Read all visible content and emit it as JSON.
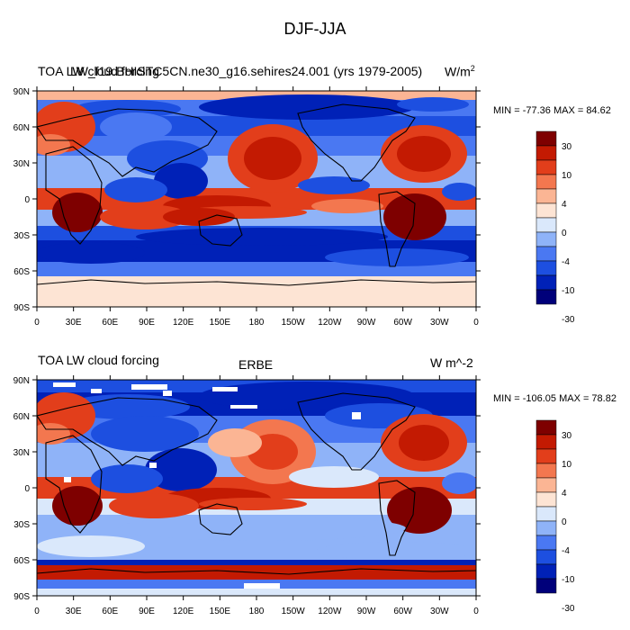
{
  "figure_title": "DJF-JJA",
  "colors": {
    "palette": [
      "#00007a",
      "#0021b7",
      "#1d4fe0",
      "#4a78f2",
      "#8fb3f8",
      "#dae8fb",
      "#fde4d4",
      "#fbb594",
      "#f3774f",
      "#e23e1b",
      "#c31a02",
      "#7e0000"
    ],
    "land_mask": "#ffffff",
    "coastline": "#000000"
  },
  "colorbar": {
    "labels": [
      "30",
      "10",
      "4",
      "0",
      "-4",
      "-10",
      "-30"
    ]
  },
  "axes": {
    "lat_labels": [
      "90N",
      "60N",
      "30N",
      "0",
      "30S",
      "60S",
      "90S"
    ],
    "lon_labels": [
      "0",
      "30E",
      "60E",
      "90E",
      "120E",
      "150E",
      "180",
      "150W",
      "120W",
      "90W",
      "60W",
      "30W",
      "0"
    ]
  },
  "panels": [
    {
      "left_title": "TOA LW cloud forcing",
      "overlap_title": "LW_f19.BHISTC5CN.ne30_g16.sehires24.001 (yrs 1979-2005)",
      "center_title": "",
      "units_text": "W/m",
      "units_sup": "2",
      "minmax": "MIN = -77.36 MAX =  84.62"
    },
    {
      "left_title": "TOA LW cloud forcing",
      "overlap_title": "",
      "center_title": "ERBE",
      "units_text": "W m^-2",
      "units_sup": "",
      "minmax": "MIN = -106.05 MAX =  78.82"
    }
  ]
}
